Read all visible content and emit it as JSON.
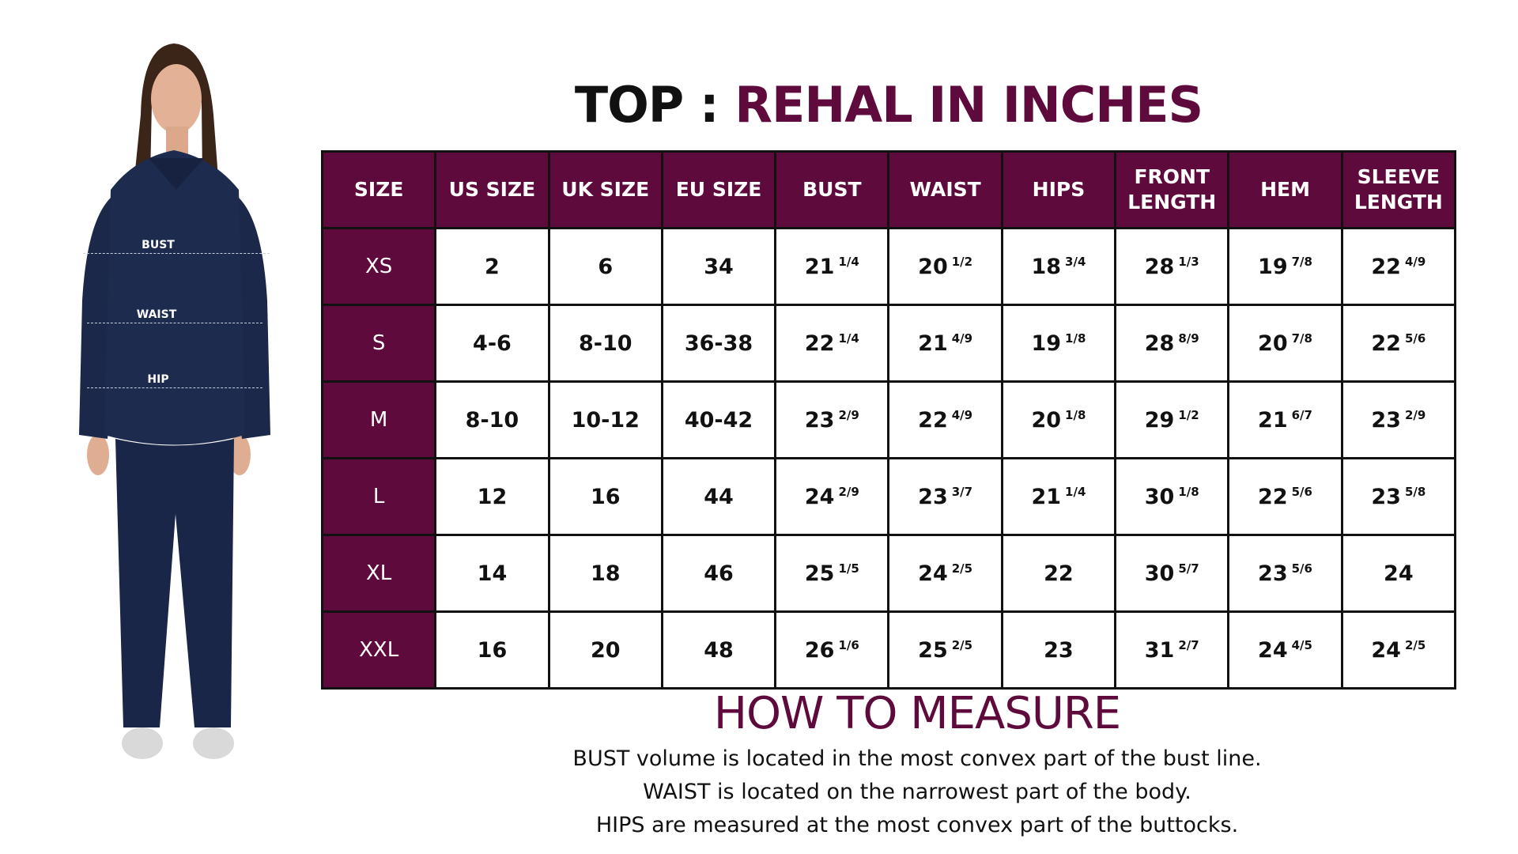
{
  "title": {
    "part1": "TOP :",
    "part2": "REHAL IN INCHES"
  },
  "model": {
    "bust_label": "BUST",
    "waist_label": "WAIST",
    "hip_label": "HIP"
  },
  "table": {
    "headers": [
      [
        "SIZE"
      ],
      [
        "US SIZE"
      ],
      [
        "UK SIZE"
      ],
      [
        "EU SIZE"
      ],
      [
        "BUST"
      ],
      [
        "WAIST"
      ],
      [
        "HIPS"
      ],
      [
        "FRONT",
        "LENGTH"
      ],
      [
        "HEM"
      ],
      [
        "SLEEVE",
        "LENGTH"
      ]
    ],
    "rows": [
      {
        "size": "XS",
        "cells": [
          [
            "2",
            ""
          ],
          [
            "6",
            ""
          ],
          [
            "34",
            ""
          ],
          [
            "21",
            "1/4"
          ],
          [
            "20",
            "1/2"
          ],
          [
            "18",
            "3/4"
          ],
          [
            "28",
            "1/3"
          ],
          [
            "19",
            "7/8"
          ],
          [
            "22",
            "4/9"
          ]
        ]
      },
      {
        "size": "S",
        "cells": [
          [
            "4-6",
            ""
          ],
          [
            "8-10",
            ""
          ],
          [
            "36-38",
            ""
          ],
          [
            "22",
            "1/4"
          ],
          [
            "21",
            "4/9"
          ],
          [
            "19",
            "1/8"
          ],
          [
            "28",
            "8/9"
          ],
          [
            "20",
            "7/8"
          ],
          [
            "22",
            "5/6"
          ]
        ]
      },
      {
        "size": "M",
        "cells": [
          [
            "8-10",
            ""
          ],
          [
            "10-12",
            ""
          ],
          [
            "40-42",
            ""
          ],
          [
            "23",
            "2/9"
          ],
          [
            "22",
            "4/9"
          ],
          [
            "20",
            "1/8"
          ],
          [
            "29",
            "1/2"
          ],
          [
            "21",
            "6/7"
          ],
          [
            "23",
            "2/9"
          ]
        ]
      },
      {
        "size": "L",
        "cells": [
          [
            "12",
            ""
          ],
          [
            "16",
            ""
          ],
          [
            "44",
            ""
          ],
          [
            "24",
            "2/9"
          ],
          [
            "23",
            "3/7"
          ],
          [
            "21",
            "1/4"
          ],
          [
            "30",
            "1/8"
          ],
          [
            "22",
            "5/6"
          ],
          [
            "23",
            "5/8"
          ]
        ]
      },
      {
        "size": "XL",
        "cells": [
          [
            "14",
            ""
          ],
          [
            "18",
            ""
          ],
          [
            "46",
            ""
          ],
          [
            "25",
            "1/5"
          ],
          [
            "24",
            "2/5"
          ],
          [
            "22",
            ""
          ],
          [
            "30",
            "5/7"
          ],
          [
            "23",
            "5/6"
          ],
          [
            "24",
            ""
          ]
        ]
      },
      {
        "size": "XXL",
        "cells": [
          [
            "16",
            ""
          ],
          [
            "20",
            ""
          ],
          [
            "48",
            ""
          ],
          [
            "26",
            "1/6"
          ],
          [
            "25",
            "2/5"
          ],
          [
            "23",
            ""
          ],
          [
            "31",
            "2/7"
          ],
          [
            "24",
            "4/5"
          ],
          [
            "24",
            "2/5"
          ]
        ]
      }
    ]
  },
  "how_to_measure": {
    "title": "HOW TO MEASURE",
    "lines": [
      "BUST volume is located in the most convex part of the bust line.",
      "WAIST is located on the narrowest part of the body.",
      "HIPS are measured at the most convex part of the buttocks."
    ]
  },
  "colors": {
    "accent": "#5e0a3c",
    "text": "#111111",
    "garment": "#1d2b4f",
    "background": "#ffffff"
  }
}
